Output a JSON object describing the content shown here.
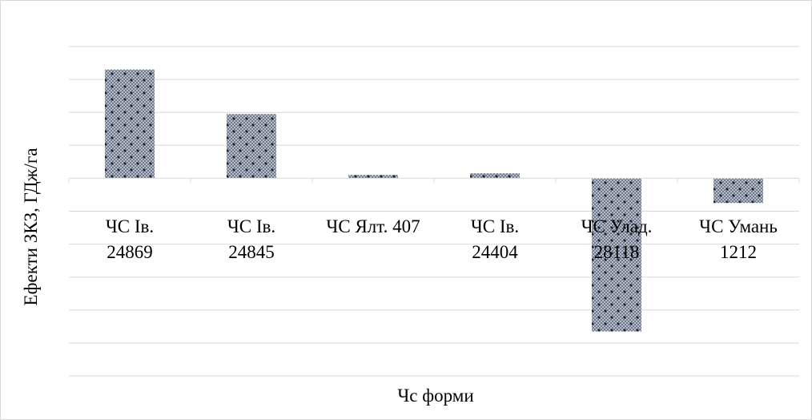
{
  "chart_data": {
    "type": "bar",
    "title": "",
    "xlabel": "Чс форми",
    "ylabel": "Ефекти ЗКЗ, ГДж/га",
    "categories": [
      [
        "ЧС Ів.",
        "24869"
      ],
      [
        "ЧС Ів.",
        "24845"
      ],
      [
        "ЧС Ялт. 407"
      ],
      [
        "ЧС Ів.",
        "24404"
      ],
      [
        "ЧС Улад.",
        "28118"
      ],
      [
        "ЧС Умань",
        "1212"
      ]
    ],
    "values": [
      6.6,
      3.9,
      0.2,
      0.3,
      -9.3,
      -1.5
    ],
    "ylim": [
      -12,
      8
    ],
    "ytick_step": 2,
    "y_tick_labels_shown": false,
    "grid": true,
    "legend": "none",
    "bar_color": "#8e99a8",
    "bar_pattern": "checkered-dotted"
  }
}
